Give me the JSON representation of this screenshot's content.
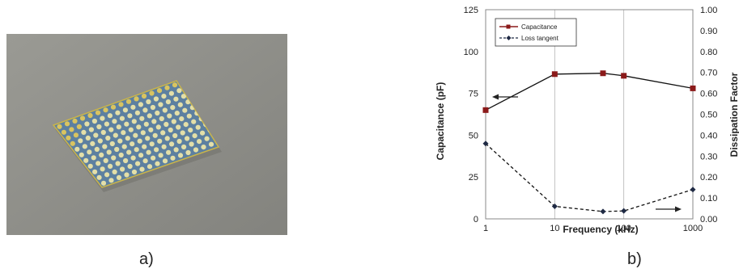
{
  "panels": {
    "a": {
      "caption": "a)"
    },
    "b": {
      "caption": "b)"
    }
  },
  "chart_data": {
    "type": "line",
    "title": "",
    "xlabel": "Frequency (kHz)",
    "ylabel": "Capacitance (pF)",
    "y2label": "Dissipation Factor",
    "x_scale": "log",
    "xlim": [
      1,
      1000
    ],
    "ylim": [
      0,
      125
    ],
    "y2lim": [
      0,
      1.0
    ],
    "x_ticks": [
      1,
      10,
      100,
      1000
    ],
    "x_tick_labels": [
      "1",
      "10",
      "100",
      "1000"
    ],
    "y_ticks": [
      0,
      25,
      50,
      75,
      100,
      125
    ],
    "y_tick_labels": [
      "0",
      "25",
      "50",
      "75",
      "100",
      "125"
    ],
    "y2_ticks": [
      0,
      0.1,
      0.2,
      0.3,
      0.4,
      0.5,
      0.6,
      0.7,
      0.8,
      0.9,
      1.0
    ],
    "y2_tick_labels": [
      "0.00",
      "0.10",
      "0.20",
      "0.30",
      "0.40",
      "0.50",
      "0.60",
      "0.70",
      "0.80",
      "0.90",
      "1.00"
    ],
    "grid": "vertical",
    "legend_position": "top-left",
    "series": [
      {
        "name": "Capacitance",
        "axis": "left",
        "style": "solid",
        "marker": "square",
        "color": "#8b1a1a",
        "x": [
          1,
          10,
          50,
          100,
          1000
        ],
        "values": [
          65,
          86.5,
          87,
          85.5,
          78
        ]
      },
      {
        "name": "Loss tangent",
        "axis": "right",
        "style": "dashed",
        "marker": "diamond",
        "color": "#1f2a44",
        "x": [
          1,
          10,
          50,
          100,
          1000
        ],
        "values": [
          0.36,
          0.06,
          0.035,
          0.038,
          0.14
        ]
      }
    ]
  }
}
